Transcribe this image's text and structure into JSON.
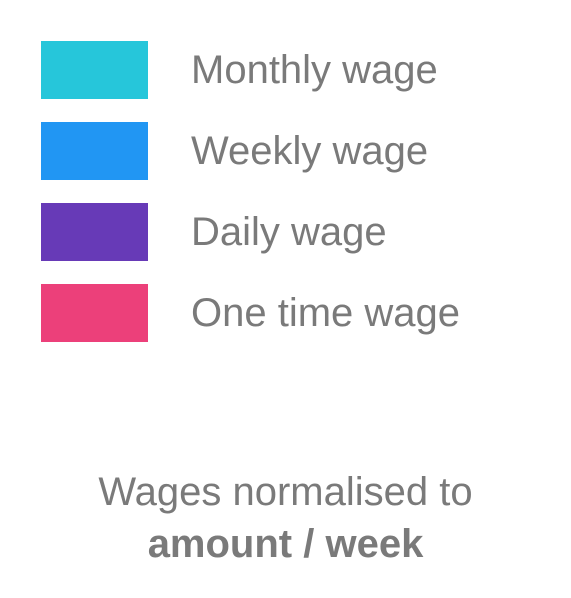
{
  "legend": {
    "items": [
      {
        "label": "Monthly wage",
        "color": "#26C6DA"
      },
      {
        "label": "Weekly wage",
        "color": "#2196F3"
      },
      {
        "label": "Daily wage",
        "color": "#673AB7"
      },
      {
        "label": "One time wage",
        "color": "#EC407A"
      }
    ]
  },
  "caption": {
    "line1": "Wages normalised to",
    "line2": "amount / week"
  }
}
